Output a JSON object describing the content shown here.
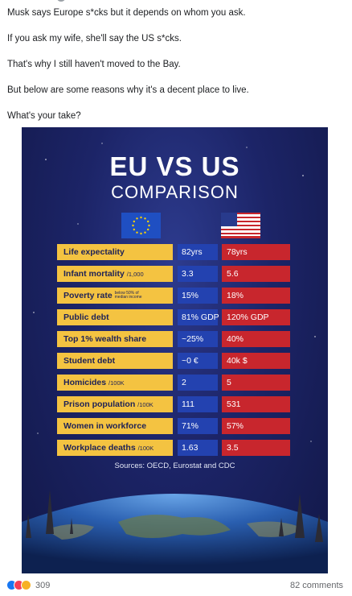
{
  "post": {
    "lines": [
      "Musk says Europe s*cks but it depends on whom you ask.",
      "If you ask my wife, she'll say the US s*cks.",
      "That's why I still haven't moved to the Bay.",
      "But below are some reasons why it's a decent place to live.",
      "What's your take?"
    ]
  },
  "infographic": {
    "title_line1": "EU VS US",
    "title_line2": "COMPARISON",
    "sources": "Sources: OECD, Eurostat and CDC",
    "rows": [
      {
        "label": "Life expectality",
        "unit": "",
        "eu": "82yrs",
        "us": "78yrs"
      },
      {
        "label": "Infant mortality",
        "unit": "/1,000",
        "eu": "3.3",
        "us": "5.6"
      },
      {
        "label": "Poverty rate",
        "unit": "below 50% of median income",
        "eu": "15%",
        "us": "18%"
      },
      {
        "label": "Public debt",
        "unit": "",
        "eu": "81% GDP",
        "us": "120% GDP"
      },
      {
        "label": "Top 1% wealth share",
        "unit": "",
        "eu": "~25%",
        "us": "40%"
      },
      {
        "label": "Student debt",
        "unit": "",
        "eu": "~0 €",
        "us": "40k $"
      },
      {
        "label": "Homicides",
        "unit": "/100K",
        "eu": "2",
        "us": "5"
      },
      {
        "label": "Prison population",
        "unit": "/100K",
        "eu": "111",
        "us": "531"
      },
      {
        "label": "Women in workforce",
        "unit": "",
        "eu": "71%",
        "us": "57%"
      },
      {
        "label": "Workplace deaths",
        "unit": "/100K",
        "eu": "1.63",
        "us": "3.5"
      }
    ],
    "colors": {
      "label_bg": "#f4c341",
      "eu_bg": "#2342b0",
      "us_bg": "#c8262d",
      "background": "#1c2467"
    }
  },
  "footer": {
    "reaction_icons": [
      "like-icon",
      "love-icon",
      "haha-icon"
    ],
    "reaction_count": "309",
    "comments": "82 comments"
  }
}
